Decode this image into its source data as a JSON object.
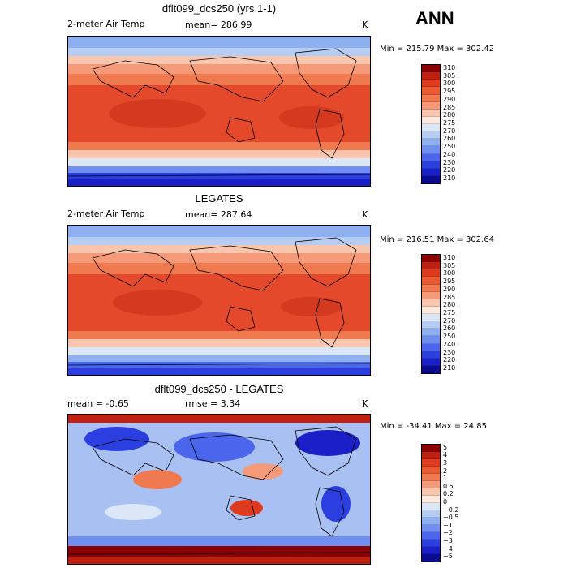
{
  "season": "ANN",
  "panels": [
    {
      "title": "dflt099_dcs250 (yrs 1-1)",
      "left_label": "2-meter Air Temp",
      "stat_label": "mean= 286.99",
      "units": "K",
      "minmax": "Min = 215.79 Max = 302.42",
      "colorbar_labels": [
        "310",
        "305",
        "300",
        "295",
        "290",
        "285",
        "280",
        "275",
        "270",
        "260",
        "250",
        "240",
        "230",
        "220",
        "210"
      ],
      "colorbar_colors": [
        "#8b0000",
        "#c0200f",
        "#dd3a1e",
        "#ea5a32",
        "#f07a50",
        "#f59a78",
        "#f9c6ad",
        "#fde8de",
        "#dbe6f7",
        "#b6cdf3",
        "#8eaff0",
        "#6f8ef0",
        "#4b66ec",
        "#2b3fe0",
        "#1b1fc8",
        "#0a0a8c"
      ]
    },
    {
      "title": "LEGATES",
      "left_label": "2-meter Air Temp",
      "stat_label": "mean= 287.64",
      "units": "K",
      "minmax": "Min = 216.51 Max = 302.64",
      "colorbar_labels": [
        "310",
        "305",
        "300",
        "295",
        "290",
        "285",
        "280",
        "275",
        "270",
        "260",
        "250",
        "240",
        "230",
        "220",
        "210"
      ],
      "colorbar_colors": [
        "#8b0000",
        "#c0200f",
        "#dd3a1e",
        "#ea5a32",
        "#f07a50",
        "#f59a78",
        "#f9c6ad",
        "#fde8de",
        "#dbe6f7",
        "#b6cdf3",
        "#8eaff0",
        "#6f8ef0",
        "#4b66ec",
        "#2b3fe0",
        "#1b1fc8",
        "#0a0a8c"
      ]
    },
    {
      "title": "dflt099_dcs250 - LEGATES",
      "left_label": "mean =   -0.65",
      "stat_label": "rmse =    3.34",
      "units": "K",
      "minmax": "Min = -34.41 Max =  24.85",
      "colorbar_labels": [
        "5",
        "4",
        "3",
        "2",
        "1",
        "0.5",
        "0.2",
        "0",
        "−0.2",
        "−0.5",
        "−1",
        "−2",
        "−3",
        "−4",
        "−5"
      ],
      "colorbar_colors": [
        "#8b0000",
        "#c0200f",
        "#dd3a1e",
        "#ea5a32",
        "#f07a50",
        "#f59a78",
        "#f9c6ad",
        "#fde8de",
        "#dbe6f7",
        "#b6cdf3",
        "#8eaff0",
        "#6f8ef0",
        "#4b66ec",
        "#2b3fe0",
        "#1b1fc8",
        "#0a0a8c"
      ]
    }
  ]
}
